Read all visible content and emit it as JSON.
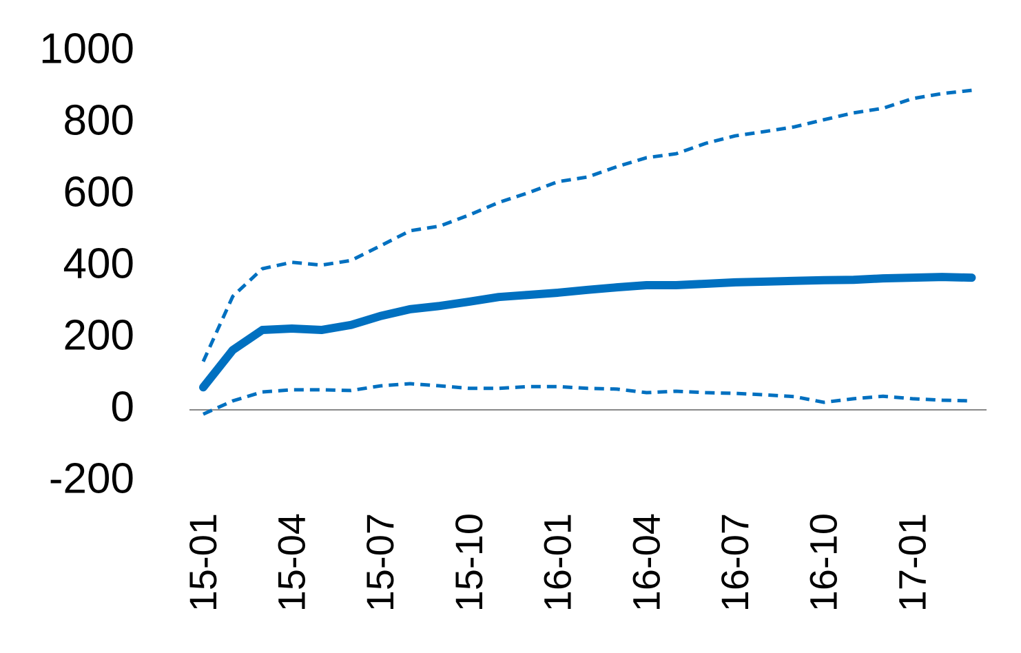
{
  "chart_data": {
    "type": "line",
    "categories": [
      "15-01",
      null,
      null,
      "15-04",
      null,
      null,
      "15-07",
      null,
      null,
      "15-10",
      null,
      null,
      "16-01",
      null,
      null,
      "16-04",
      null,
      null,
      "16-07",
      null,
      null,
      "16-10",
      null,
      null,
      "17-01",
      null,
      null
    ],
    "series": [
      {
        "color": "#0070c0",
        "dashed": true,
        "values": [
          135,
          317,
          394,
          412,
          404,
          417,
          458,
          500,
          513,
          544,
          579,
          606,
          637,
          650,
          679,
          704,
          715,
          744,
          765,
          777,
          790,
          810,
          829,
          842,
          869,
          883,
          892
        ]
      },
      {
        "color": "#0070c0",
        "dashed": false,
        "values": [
          63,
          167,
          223,
          227,
          223,
          237,
          262,
          281,
          290,
          302,
          315,
          321,
          327,
          335,
          342,
          348,
          348,
          352,
          356,
          358,
          360,
          362,
          363,
          367,
          369,
          371,
          369
        ]
      },
      {
        "color": "#0070c0",
        "dashed": true,
        "values": [
          -12,
          25,
          50,
          56,
          56,
          54,
          67,
          73,
          67,
          60,
          60,
          65,
          65,
          60,
          58,
          48,
          52,
          48,
          46,
          42,
          37,
          21,
          31,
          38,
          31,
          27,
          25
        ]
      }
    ],
    "ylim": [
      -200,
      1000
    ],
    "yticks": [
      -200,
      0,
      200,
      400,
      600,
      800,
      1000
    ],
    "grid": false
  }
}
